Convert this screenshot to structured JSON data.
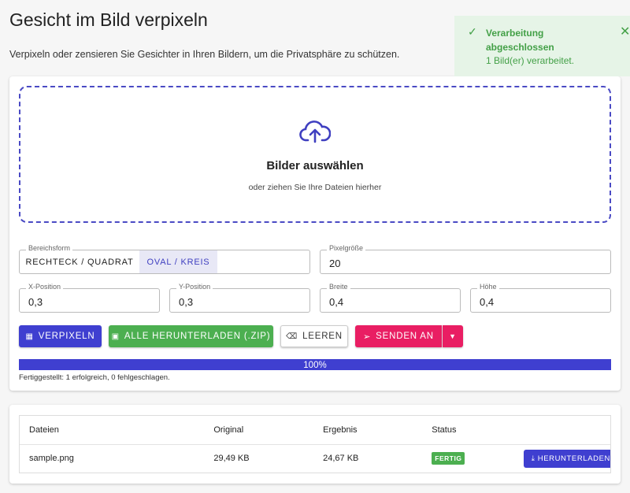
{
  "header": {
    "title": "Gesicht im Bild verpixeln",
    "subtitle": "Verpixeln oder zensieren Sie Gesichter in Ihren Bildern, um die Privatsphäre zu schützen."
  },
  "toast": {
    "title": "Verarbeitung abgeschlossen",
    "message": "1 Bild(er) verarbeitet."
  },
  "dropzone": {
    "title": "Bilder auswählen",
    "hint": "oder ziehen Sie Ihre Dateien hierher"
  },
  "fields": {
    "shape": {
      "label": "Bereichsform",
      "options": [
        "RECHTECK / QUADRAT",
        "OVAL / KREIS"
      ]
    },
    "pixel_size": {
      "label": "Pixelgröße",
      "value": "20"
    },
    "x": {
      "label": "X-Position",
      "value": "0,3"
    },
    "y": {
      "label": "Y-Position",
      "value": "0,3"
    },
    "width": {
      "label": "Breite",
      "value": "0,4"
    },
    "height": {
      "label": "Höhe",
      "value": "0,4"
    }
  },
  "buttons": [
    "VERPIXELN",
    "ALLE HERUNTERLADEN (.ZIP)",
    "LEEREN",
    "SENDEN AN"
  ],
  "progress": {
    "value": 100,
    "label": "100%"
  },
  "status": "Fertiggestellt: 1 erfolgreich, 0 fehlgeschlagen.",
  "table": {
    "headers": [
      "Dateien",
      "Original",
      "Ergebnis",
      "Status"
    ],
    "rows": [
      [
        "sample.png",
        "29,49 KB",
        "24,67 KB",
        "FERTIG",
        "HERUNTERLADEN"
      ]
    ]
  }
}
